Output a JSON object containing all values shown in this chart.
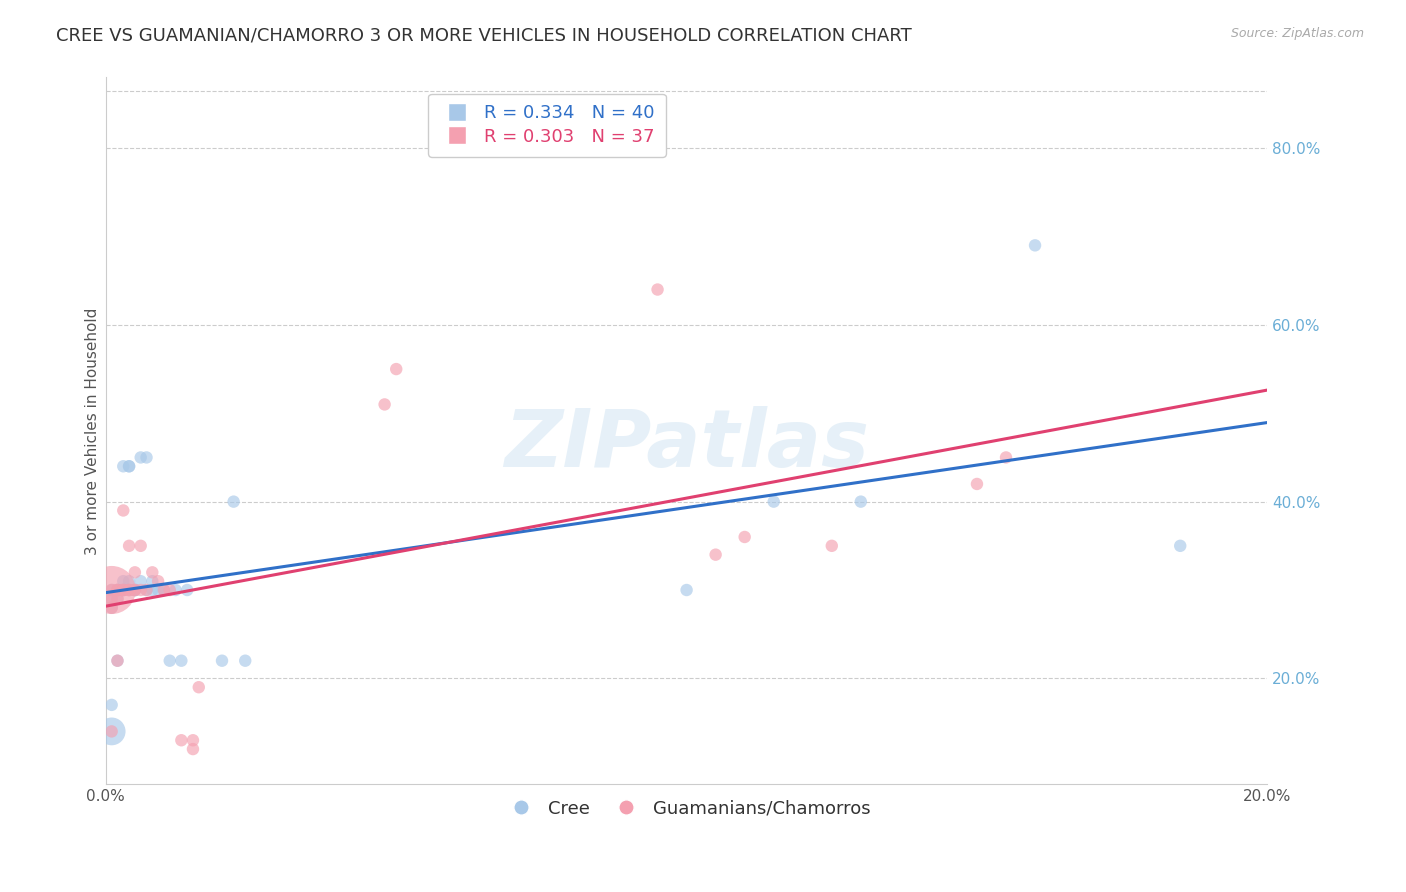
{
  "title": "CREE VS GUAMANIAN/CHAMORRO 3 OR MORE VEHICLES IN HOUSEHOLD CORRELATION CHART",
  "source": "Source: ZipAtlas.com",
  "ylabel": "3 or more Vehicles in Household",
  "right_ytick_vals": [
    0.2,
    0.4,
    0.6,
    0.8
  ],
  "xmin": 0.0,
  "xmax": 0.2,
  "ymin": 0.08,
  "ymax": 0.88,
  "cree_color": "#a8c8e8",
  "guam_color": "#f4a0b0",
  "cree_trend_color": "#3070c8",
  "guam_trend_color": "#e04070",
  "watermark_text": "ZIPatlas",
  "grid_color": "#cccccc",
  "background_color": "#ffffff",
  "title_fontsize": 13,
  "axis_label_fontsize": 11,
  "tick_fontsize": 11,
  "legend_fontsize": 13,
  "cree_x": [
    0.001,
    0.001,
    0.001,
    0.001,
    0.001,
    0.002,
    0.002,
    0.002,
    0.002,
    0.003,
    0.003,
    0.003,
    0.003,
    0.004,
    0.004,
    0.004,
    0.004,
    0.005,
    0.005,
    0.005,
    0.006,
    0.006,
    0.007,
    0.007,
    0.008,
    0.008,
    0.009,
    0.01,
    0.011,
    0.012,
    0.013,
    0.014,
    0.02,
    0.022,
    0.024,
    0.1,
    0.115,
    0.13,
    0.16,
    0.185
  ],
  "cree_y": [
    0.3,
    0.29,
    0.28,
    0.17,
    0.14,
    0.3,
    0.3,
    0.29,
    0.22,
    0.44,
    0.3,
    0.3,
    0.31,
    0.44,
    0.44,
    0.3,
    0.31,
    0.3,
    0.3,
    0.3,
    0.45,
    0.31,
    0.3,
    0.45,
    0.3,
    0.31,
    0.3,
    0.3,
    0.22,
    0.3,
    0.22,
    0.3,
    0.22,
    0.4,
    0.22,
    0.3,
    0.4,
    0.4,
    0.69,
    0.35
  ],
  "cree_sizes": [
    80,
    80,
    80,
    80,
    400,
    80,
    80,
    80,
    80,
    80,
    80,
    80,
    80,
    80,
    80,
    80,
    80,
    80,
    80,
    80,
    80,
    80,
    80,
    80,
    80,
    80,
    80,
    80,
    80,
    80,
    80,
    80,
    80,
    80,
    80,
    80,
    80,
    80,
    80,
    80
  ],
  "guam_x": [
    0.001,
    0.001,
    0.001,
    0.001,
    0.001,
    0.002,
    0.002,
    0.002,
    0.002,
    0.003,
    0.003,
    0.003,
    0.004,
    0.004,
    0.004,
    0.005,
    0.005,
    0.005,
    0.006,
    0.006,
    0.007,
    0.008,
    0.009,
    0.01,
    0.011,
    0.013,
    0.015,
    0.015,
    0.016,
    0.048,
    0.05,
    0.095,
    0.105,
    0.11,
    0.125,
    0.15,
    0.155
  ],
  "guam_y": [
    0.3,
    0.3,
    0.29,
    0.28,
    0.14,
    0.3,
    0.3,
    0.29,
    0.22,
    0.3,
    0.3,
    0.39,
    0.3,
    0.3,
    0.35,
    0.3,
    0.3,
    0.32,
    0.3,
    0.35,
    0.3,
    0.32,
    0.31,
    0.3,
    0.3,
    0.13,
    0.12,
    0.13,
    0.19,
    0.51,
    0.55,
    0.64,
    0.34,
    0.36,
    0.35,
    0.42,
    0.45
  ],
  "guam_sizes": [
    1200,
    80,
    80,
    80,
    80,
    80,
    80,
    80,
    80,
    80,
    80,
    80,
    80,
    80,
    80,
    80,
    80,
    80,
    80,
    80,
    80,
    80,
    80,
    80,
    80,
    80,
    80,
    80,
    80,
    80,
    80,
    80,
    80,
    80,
    80,
    80,
    80
  ]
}
